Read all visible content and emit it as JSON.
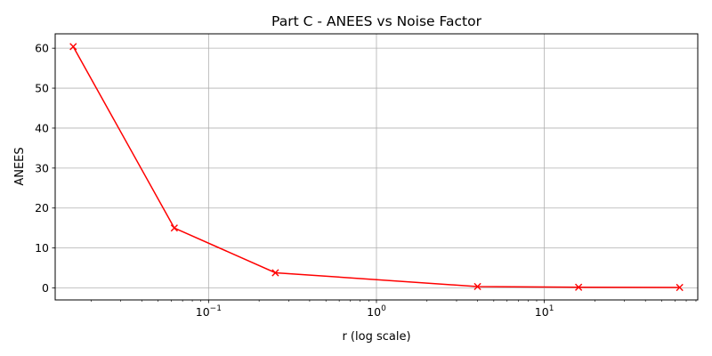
{
  "chart_data": {
    "type": "line",
    "title": "Part C - ANEES vs Noise Factor",
    "xlabel": "r (log scale)",
    "ylabel": "ANEES",
    "x_scale": "log",
    "x": [
      0.015625,
      0.0625,
      0.25,
      4,
      16,
      64
    ],
    "series": [
      {
        "values": [
          60.4,
          15.0,
          3.8,
          0.35,
          0.18,
          0.12
        ],
        "color": "#ff0000",
        "marker": "x"
      }
    ],
    "xlim": [
      0.0122,
      82
    ],
    "ylim": [
      -3.0,
      63.6
    ],
    "x_ticks": [
      {
        "value": 0.1,
        "base": "10",
        "exp": "−1"
      },
      {
        "value": 1,
        "base": "10",
        "exp": "0"
      },
      {
        "value": 10,
        "base": "10",
        "exp": "1"
      }
    ],
    "y_ticks": [
      0,
      10,
      20,
      30,
      40,
      50,
      60
    ],
    "grid": true
  }
}
